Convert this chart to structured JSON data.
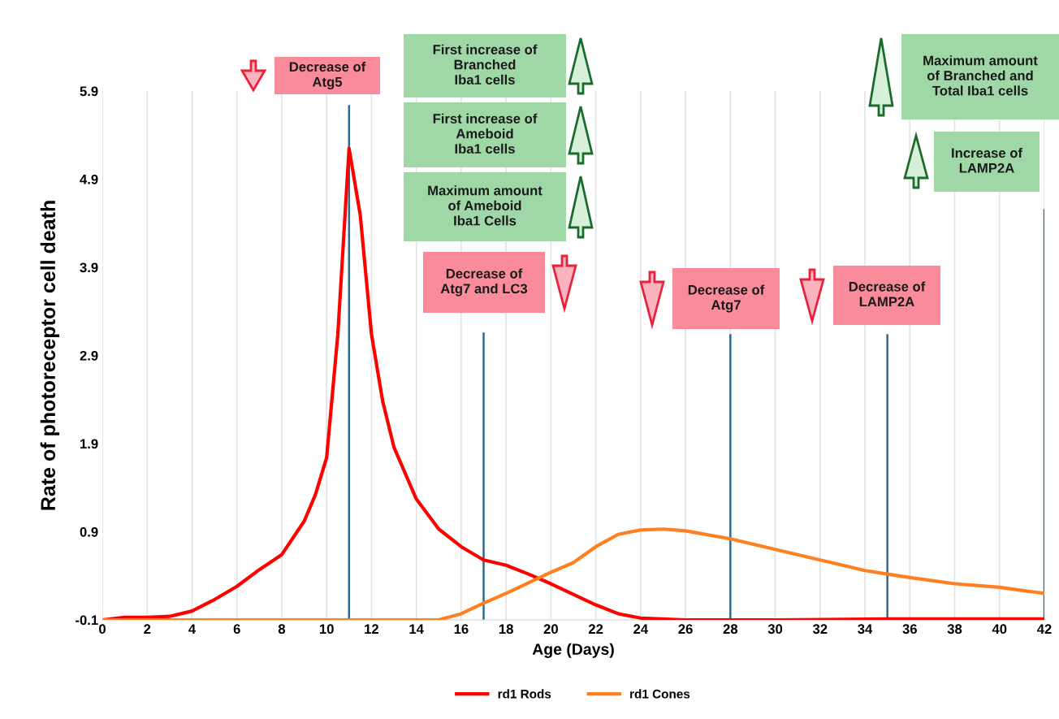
{
  "chart_data": {
    "type": "line",
    "xlabel": "Age (Days)",
    "ylabel": "Rate of photoreceptor cell death",
    "xlim": [
      0,
      42
    ],
    "xticks": [
      0,
      2,
      4,
      6,
      8,
      10,
      12,
      14,
      16,
      18,
      20,
      22,
      24,
      26,
      28,
      30,
      32,
      34,
      36,
      38,
      40,
      42
    ],
    "ylim": [
      -0.1,
      5.9
    ],
    "yticks": [
      -0.1,
      0.9,
      1.9,
      2.9,
      3.9,
      4.9,
      5.9
    ],
    "grid": "x",
    "legend": "bottom",
    "marker": "none",
    "line_style": "solid",
    "series": [
      {
        "name": "rd1 Rods",
        "color": "#ff0000",
        "x": [
          0,
          1,
          2,
          3,
          4,
          5,
          6,
          7,
          8,
          9,
          9.5,
          10,
          10.5,
          11,
          11.5,
          12,
          12.5,
          13,
          14,
          15,
          16,
          17,
          18,
          19,
          20,
          21,
          22,
          23,
          24,
          26,
          28,
          30,
          35,
          42
        ],
        "values": [
          -0.1,
          -0.07,
          -0.07,
          -0.06,
          0.0,
          0.13,
          0.28,
          0.47,
          0.64,
          1.02,
          1.32,
          1.74,
          3.14,
          5.25,
          4.49,
          3.14,
          2.38,
          1.86,
          1.27,
          0.93,
          0.73,
          0.58,
          0.52,
          0.42,
          0.31,
          0.19,
          0.07,
          -0.03,
          -0.08,
          -0.1,
          -0.1,
          -0.1,
          -0.09,
          -0.09
        ]
      },
      {
        "name": "rd1 Cones",
        "color": "#ff8020",
        "x": [
          0,
          4,
          8,
          12,
          13,
          14,
          15,
          16,
          17,
          18,
          19,
          20,
          21,
          22,
          23,
          24,
          25,
          26,
          28,
          30,
          32,
          34,
          35,
          36,
          38,
          40,
          42
        ],
        "values": [
          -0.1,
          -0.1,
          -0.1,
          -0.1,
          -0.1,
          -0.1,
          -0.1,
          -0.03,
          0.09,
          0.2,
          0.32,
          0.44,
          0.55,
          0.73,
          0.87,
          0.92,
          0.93,
          0.91,
          0.82,
          0.7,
          0.58,
          0.46,
          0.42,
          0.38,
          0.31,
          0.27,
          0.2
        ]
      }
    ],
    "ref_lines": [
      {
        "axis": "x",
        "value": 11,
        "color": "#2e6a8e"
      },
      {
        "axis": "x",
        "value": 17,
        "color": "#2e6a8e"
      },
      {
        "axis": "x",
        "value": 28,
        "color": "#2e6a8e"
      },
      {
        "axis": "x",
        "value": 35,
        "color": "#2e6a8e"
      },
      {
        "axis": "x",
        "value": 42,
        "color": "#2e6a8e"
      }
    ],
    "annotations": [
      "Decrease of\nAtg5",
      "First increase of\nBranched\nIba1 cells",
      "First increase of\nAmeboid\nIba1 cells",
      "Maximum amount\nof Ameboid\nIba1 Cells",
      "Decrease of\nAtg7 and LC3",
      "Decrease of\nAtg7",
      "Decrease of\nLAMP2A",
      "Maximum amount\nof Branched and\nTotal Iba1 cells",
      "Increase of\nLAMP2A"
    ]
  }
}
